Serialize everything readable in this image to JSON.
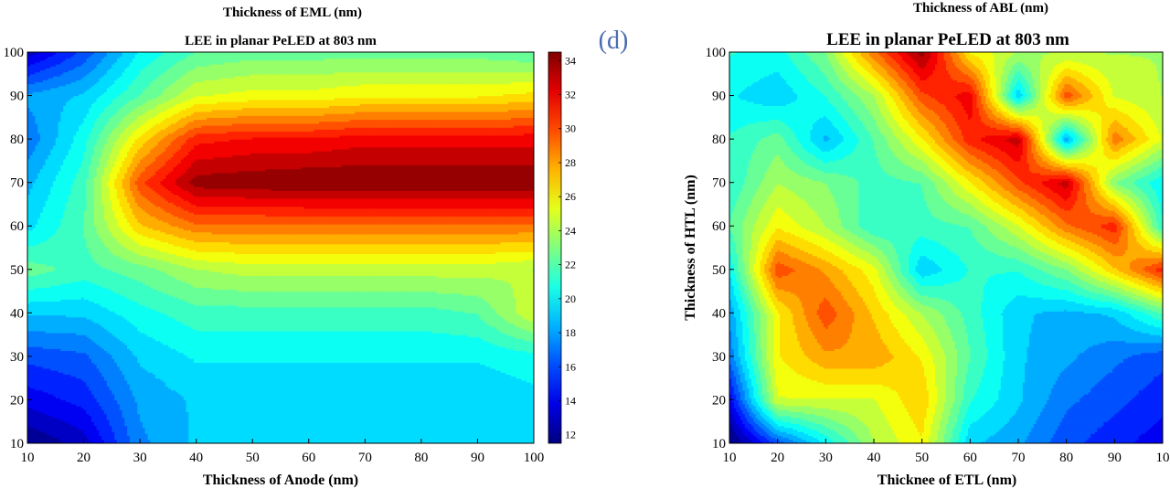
{
  "panel_label": "(d)",
  "colorbar": {
    "ticks": [
      "34",
      "32",
      "30",
      "28",
      "26",
      "24",
      "22",
      "20",
      "18",
      "16",
      "14",
      "12"
    ],
    "tick_values": [
      34,
      32,
      30,
      28,
      26,
      24,
      22,
      20,
      18,
      16,
      14,
      12
    ]
  },
  "chart_data": [
    {
      "type": "heatmap",
      "subtype": "filled-contour",
      "top_label": "Thickness of EML (nm)",
      "title": "LEE in planar PeLED at 803 nm",
      "xlabel": "Thickness of Anode (nm)",
      "ylabel": "",
      "xlim": [
        10,
        100
      ],
      "ylim": [
        10,
        100
      ],
      "xticks": [
        "10",
        "20",
        "30",
        "40",
        "50",
        "60",
        "70",
        "80",
        "90",
        "100"
      ],
      "yticks": [
        "100",
        "90",
        "80",
        "70",
        "60",
        "50",
        "40",
        "30",
        "20",
        "10"
      ],
      "zlim": [
        11.5,
        34.5
      ],
      "x": [
        10,
        20,
        30,
        40,
        50,
        60,
        70,
        80,
        90,
        100
      ],
      "y": [
        10,
        20,
        30,
        40,
        50,
        60,
        70,
        80,
        90,
        100
      ],
      "z": [
        [
          11.5,
          13,
          17.5,
          19,
          19,
          19,
          19,
          19,
          19,
          19
        ],
        [
          14,
          15,
          18,
          19,
          19,
          19,
          19,
          19,
          19,
          19.5
        ],
        [
          16,
          16.5,
          19,
          20,
          20,
          20,
          20,
          20,
          20,
          20.5
        ],
        [
          19,
          19,
          20.5,
          21.5,
          21.5,
          21.5,
          21.5,
          21.5,
          22,
          25
        ],
        [
          22.5,
          21.5,
          22.5,
          24,
          24.5,
          24.5,
          24.5,
          24.5,
          24.5,
          24
        ],
        [
          19.5,
          22,
          27,
          29,
          29,
          29,
          29,
          29,
          29,
          29
        ],
        [
          18.5,
          21.5,
          30,
          34,
          34.2,
          34.5,
          34.5,
          34.5,
          34.5,
          34.5
        ],
        [
          17,
          20.5,
          26.5,
          31,
          31.5,
          31.5,
          32,
          32,
          32,
          32
        ],
        [
          18,
          19,
          22,
          25,
          25.5,
          25.5,
          26,
          26,
          26,
          26.5
        ],
        [
          13,
          16,
          20,
          22,
          22.5,
          22.5,
          22.5,
          22.5,
          22.5,
          22
        ]
      ]
    },
    {
      "type": "heatmap",
      "subtype": "filled-contour",
      "top_label": "Thickness of ABL (nm)",
      "title": "LEE in planar PeLED at 803 nm",
      "xlabel": "Thicknee of ETL (nm)",
      "ylabel": "Thickness of HTL (nm)",
      "xlim": [
        10,
        100
      ],
      "ylim": [
        10,
        100
      ],
      "xticks": [
        "10",
        "20",
        "30",
        "40",
        "50",
        "60",
        "70",
        "80",
        "90",
        "10"
      ],
      "yticks": [
        "100",
        "90",
        "80",
        "70",
        "60",
        "50",
        "40",
        "30",
        "20",
        "10"
      ],
      "zlim": [
        11.5,
        34.5
      ],
      "x": [
        10,
        20,
        30,
        40,
        50,
        60,
        70,
        80,
        90,
        100
      ],
      "y": [
        10,
        20,
        30,
        40,
        50,
        60,
        70,
        80,
        90,
        100
      ],
      "z": [
        [
          11,
          16,
          20,
          24,
          26,
          19,
          18,
          16,
          15,
          14
        ],
        [
          14,
          25,
          25,
          25,
          27,
          21,
          19,
          17,
          16,
          15
        ],
        [
          17,
          26,
          28,
          28,
          26,
          22,
          19,
          18,
          17,
          16
        ],
        [
          18,
          26,
          30,
          27,
          24,
          21.5,
          19,
          18.5,
          19,
          22
        ],
        [
          20,
          30,
          28,
          25.5,
          19,
          21,
          21,
          23,
          27,
          31
        ],
        [
          22,
          26,
          24,
          21,
          21.5,
          22,
          25,
          29,
          31,
          21
        ],
        [
          21,
          24,
          23,
          21.5,
          22,
          26,
          30,
          33,
          23,
          20
        ],
        [
          21,
          22.5,
          18.5,
          22,
          26,
          31,
          33,
          18,
          29,
          25
        ],
        [
          20,
          19,
          21,
          24,
          30,
          32,
          19,
          30,
          25,
          24
        ],
        [
          21,
          20.5,
          23,
          29,
          34,
          26,
          24,
          24,
          24,
          24
        ]
      ]
    }
  ]
}
